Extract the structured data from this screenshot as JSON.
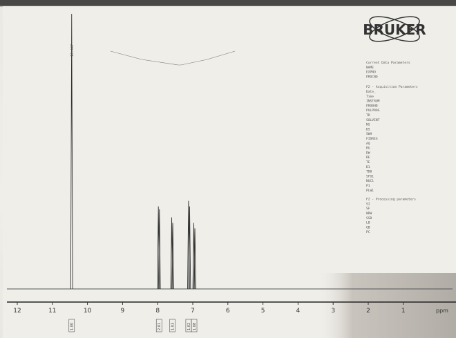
{
  "logo": {
    "text": "BRUKER"
  },
  "colors": {
    "paper": "#efeee9",
    "ink": "#333333",
    "shadow": "#bdb9b0"
  },
  "chart_data": {
    "type": "line",
    "title": "",
    "xlabel": "ppm",
    "ylabel": "",
    "x_reversed": true,
    "xlim": [
      12,
      0
    ],
    "x_ticks": [
      "12",
      "11",
      "10",
      "9",
      "8",
      "7",
      "6",
      "5",
      "4",
      "3",
      "2",
      "1",
      "ppm"
    ],
    "peaks": [
      {
        "ppm": 10.45,
        "height": 1.0
      },
      {
        "ppm": 7.98,
        "height": 0.3
      },
      {
        "ppm": 7.95,
        "height": 0.29
      },
      {
        "ppm": 7.6,
        "height": 0.26
      },
      {
        "ppm": 7.57,
        "height": 0.24
      },
      {
        "ppm": 7.12,
        "height": 0.32
      },
      {
        "ppm": 7.09,
        "height": 0.3
      },
      {
        "ppm": 6.97,
        "height": 0.24
      },
      {
        "ppm": 6.94,
        "height": 0.22
      }
    ],
    "peak_labels_top": {
      "single": "10.447"
    },
    "integrals": [
      {
        "ppm": 10.45,
        "value": "1.00"
      },
      {
        "ppm": 7.96,
        "value": "2.01"
      },
      {
        "ppm": 7.58,
        "value": "1.03"
      },
      {
        "ppm": 7.12,
        "value": "1.02"
      },
      {
        "ppm": 6.96,
        "value": "1.08"
      }
    ]
  },
  "params": {
    "current": [
      "Current Data Parameters",
      "NAME",
      "EXPNO",
      "PROCNO"
    ],
    "f2_acq": [
      "F2 - Acquisition Parameters",
      "Date_",
      "Time",
      "INSTRUM",
      "PROBHD",
      "PULPROG",
      "TD",
      "SOLVENT",
      "NS",
      "DS",
      "SWH",
      "FIDRES",
      "AQ",
      "RG",
      "DW",
      "DE",
      "TE",
      "D1",
      "TD0",
      "SFO1",
      "NUC1",
      "P1",
      "PLW1"
    ],
    "f2_proc": [
      "F2 - Processing parameters",
      "SI",
      "SF",
      "WDW",
      "SSB",
      "LB",
      "GB",
      "PC"
    ]
  }
}
